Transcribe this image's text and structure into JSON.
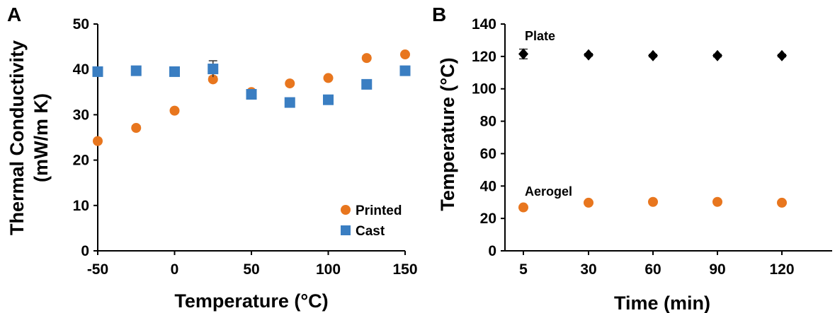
{
  "chart_data": [
    {
      "type": "scatter",
      "panel_label": "A",
      "xlabel": "Temperature (°C)",
      "ylabel_lines": [
        "Thermal Conductivity",
        "(mW/m K)"
      ],
      "xlim": [
        -50,
        150
      ],
      "ylim": [
        0,
        50
      ],
      "xticks": [
        -50,
        0,
        50,
        100,
        150
      ],
      "xtick_labels": [
        "-50",
        "0",
        "50",
        "100",
        "150"
      ],
      "yticks": [
        0,
        10,
        20,
        30,
        40,
        50
      ],
      "ytick_labels": [
        "0",
        "10",
        "20",
        "30",
        "40",
        "50"
      ],
      "grid": false,
      "legend_position": "bottom-right",
      "series": [
        {
          "name": "Printed",
          "marker": "circle",
          "color": "#E8761E",
          "x": [
            -50,
            -25,
            0,
            25,
            50,
            75,
            100,
            125,
            150
          ],
          "y": [
            24.2,
            27.1,
            30.9,
            37.8,
            35.0,
            36.9,
            38.1,
            42.5,
            43.3
          ],
          "err": [
            0.4,
            0.5,
            0.3,
            0.6,
            0.4,
            0.4,
            0.4,
            0.5,
            0.4
          ]
        },
        {
          "name": "Cast",
          "marker": "square",
          "color": "#3A7EC2",
          "x": [
            -50,
            -25,
            0,
            25,
            50,
            75,
            100,
            125,
            150
          ],
          "y": [
            39.5,
            39.7,
            39.5,
            40.1,
            34.5,
            32.7,
            33.3,
            36.7,
            39.7
          ],
          "err": [
            0.3,
            0.3,
            0.3,
            1.8,
            0.4,
            0.3,
            0.3,
            0.3,
            0.3
          ]
        }
      ]
    },
    {
      "type": "scatter",
      "panel_label": "B",
      "xlabel": "Time (min)",
      "ylabel": "Temperature (°C)",
      "categories": [
        "5",
        "30",
        "60",
        "90",
        "120"
      ],
      "ylim": [
        0,
        140
      ],
      "yticks": [
        0,
        20,
        40,
        60,
        80,
        100,
        120,
        140
      ],
      "ytick_labels": [
        "0",
        "20",
        "40",
        "60",
        "80",
        "100",
        "120",
        "140"
      ],
      "grid": false,
      "series": [
        {
          "name": "Plate",
          "marker": "diamond",
          "color": "#000000",
          "values": [
            121.5,
            121.0,
            120.5,
            120.5,
            120.5
          ],
          "err": [
            3.0,
            0.8,
            0.8,
            0.8,
            0.8
          ]
        },
        {
          "name": "Aerogel",
          "marker": "circle",
          "color": "#E8761E",
          "values": [
            26.8,
            29.7,
            30.2,
            30.2,
            29.7
          ],
          "err": [
            0.5,
            0.6,
            0.6,
            0.6,
            0.6
          ]
        }
      ]
    }
  ]
}
